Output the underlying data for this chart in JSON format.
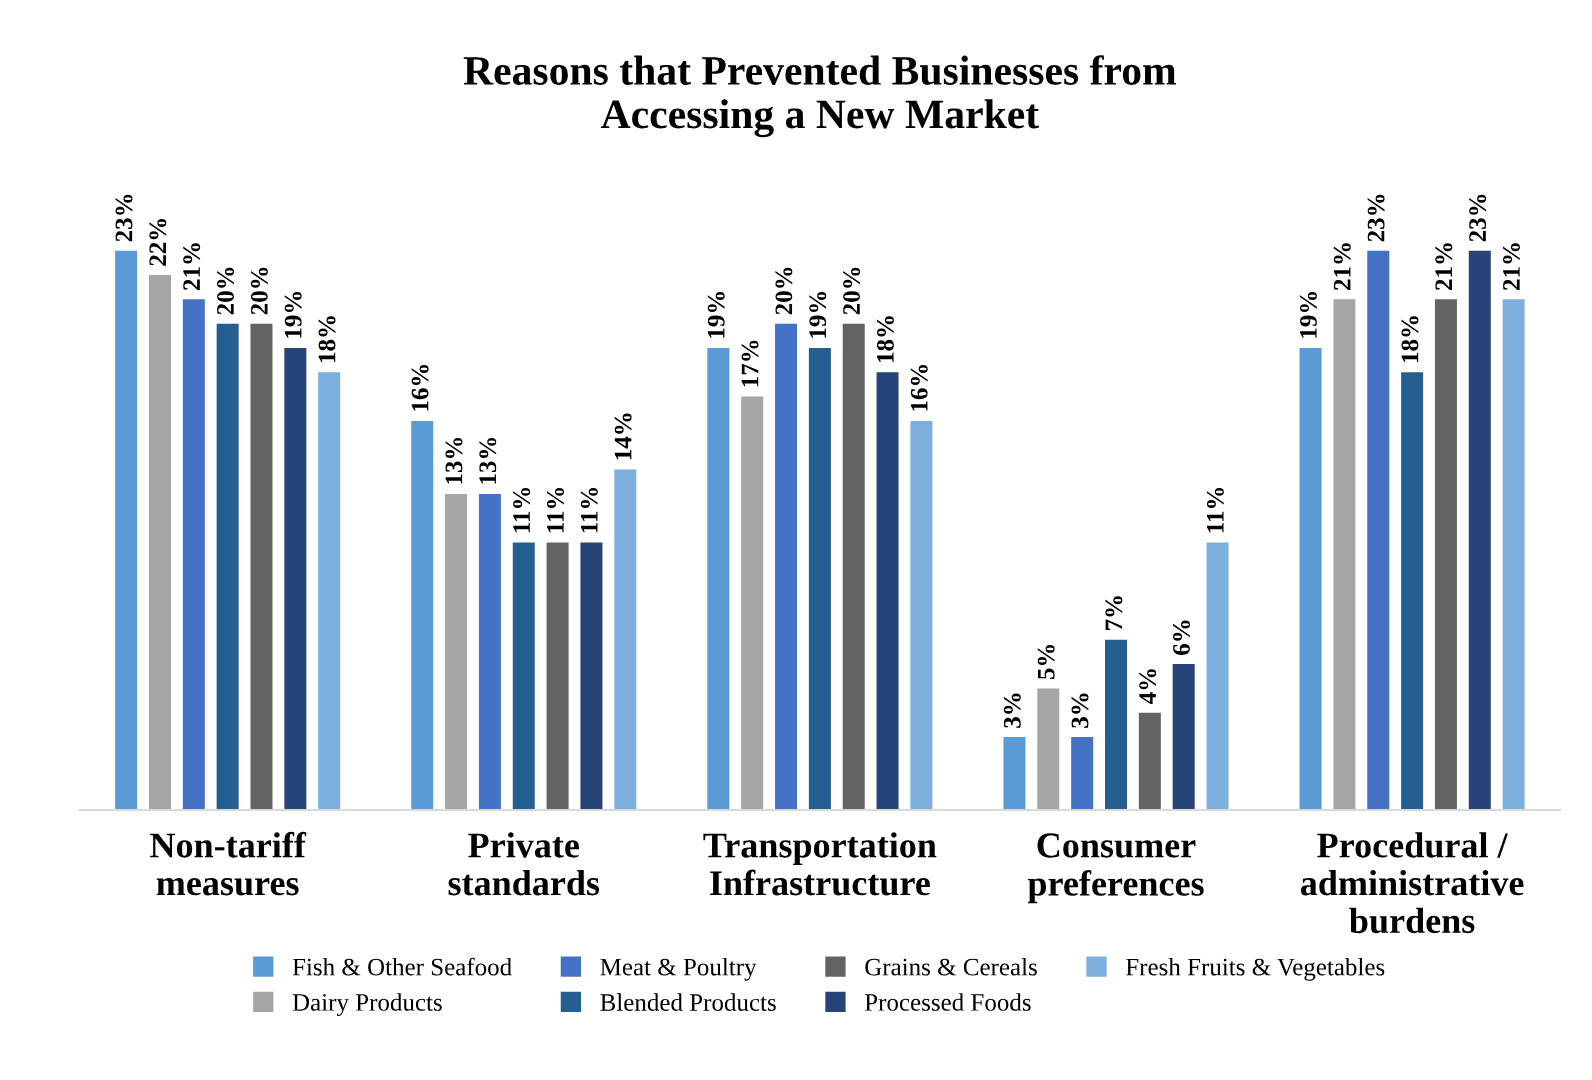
{
  "chart_data": {
    "type": "bar",
    "title": "Reasons that Prevented Businesses from\nAccessing a New Market",
    "categories": [
      "Non-tariff\nmeasures",
      "Private\nstandards",
      "Transportation\nInfrastructure",
      "Consumer\npreferences",
      "Procedural /\nadministrative\nburdens"
    ],
    "series": [
      {
        "name": "Fish & Other Seafood",
        "color": "#5b9bd5",
        "values": [
          23,
          16,
          19,
          3,
          19
        ],
        "value_labels": [
          "23%",
          "16%",
          "19%",
          "3%",
          "19%"
        ]
      },
      {
        "name": "Dairy Products",
        "color": "#a5a5a5",
        "values": [
          22,
          13,
          17,
          5,
          21
        ],
        "value_labels": [
          "22%",
          "13%",
          "17%",
          "5%",
          "21%"
        ]
      },
      {
        "name": "Meat & Poultry",
        "color": "#4472c4",
        "values": [
          21,
          13,
          20,
          3,
          23
        ],
        "value_labels": [
          "21%",
          "13%",
          "20%",
          "3%",
          "23%"
        ]
      },
      {
        "name": "Blended Products",
        "color": "#255e91",
        "values": [
          20,
          11,
          19,
          7,
          18
        ],
        "value_labels": [
          "20%",
          "11%",
          "19%",
          "7%",
          "18%"
        ]
      },
      {
        "name": "Grains & Cereals",
        "color": "#636363",
        "values": [
          20,
          11,
          20,
          4,
          21
        ],
        "value_labels": [
          "20%",
          "11%",
          "20%",
          "4%",
          "21%"
        ]
      },
      {
        "name": "Processed Foods",
        "color": "#264478",
        "values": [
          19,
          11,
          18,
          6,
          23
        ],
        "value_labels": [
          "19%",
          "11%",
          "18%",
          "6%",
          "23%"
        ]
      },
      {
        "name": "Fresh Fruits & Vegetables",
        "color": "#7cafdd",
        "values": [
          18,
          14,
          16,
          11,
          21
        ],
        "value_labels": [
          "18%",
          "14%",
          "16%",
          "11%",
          "21%"
        ]
      }
    ],
    "legend": "bottom",
    "grid": false
  }
}
